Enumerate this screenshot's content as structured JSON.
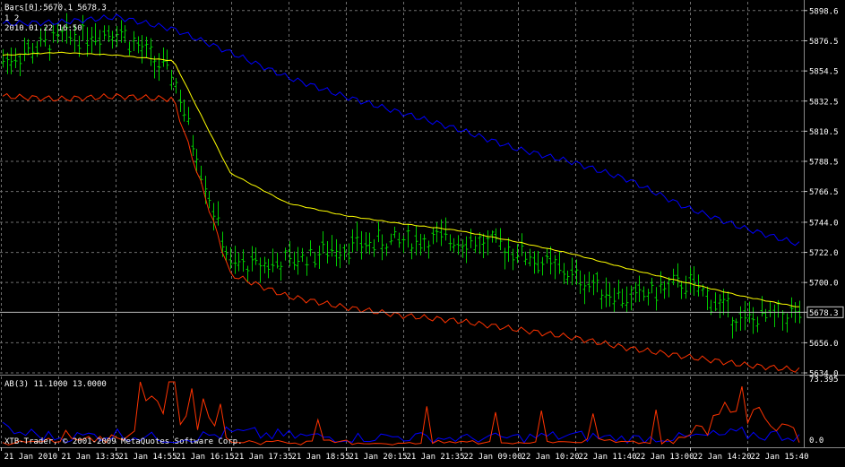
{
  "main_panel": {
    "header_line1": "Bars[0]:5670.1 5678.3",
    "header_line2": "1 2",
    "header_line3": "2010.01.22 16:50",
    "price_ticks": [
      "5898.6",
      "5876.5",
      "5854.5",
      "5832.5",
      "5810.5",
      "5788.5",
      "5766.5",
      "5744.0",
      "5722.0",
      "5700.0",
      "5678.3",
      "5656.0",
      "5634.0"
    ],
    "current_price": "5678.3"
  },
  "indicator_panel": {
    "title": "AB(3) 11.1000 13.0000",
    "ticks": [
      "73.395",
      "0.0"
    ]
  },
  "copyright": "XTB-Trader, © 2001-2009 MetaQuotes Software Corp.",
  "time_labels": [
    "21 Jan 2010",
    "21 Jan 13:35",
    "21 Jan 14:55",
    "21 Jan 16:15",
    "21 Jan 17:35",
    "21 Jan 18:55",
    "21 Jan 20:15",
    "21 Jan 21:35",
    "22 Jan 09:00",
    "22 Jan 10:20",
    "22 Jan 11:40",
    "22 Jan 13:00",
    "22 Jan 14:20",
    "22 Jan 15:40"
  ],
  "colors": {
    "background": "#000000",
    "grid": "#6f6f6f",
    "bars": "#00cc00",
    "ma_mid": "#ffff00",
    "band_upper": "#0000ff",
    "band_lower": "#ff3300",
    "axis_text": "#ffffff"
  },
  "chart_data": {
    "type": "line",
    "instrument_timeframe": "bars (OHLC)",
    "y_range": [
      5634.0,
      5905.0
    ],
    "x": [
      "21 Jan 2010",
      "21 Jan 13:35",
      "21 Jan 14:55",
      "21 Jan 16:15",
      "21 Jan 17:35",
      "21 Jan 18:55",
      "21 Jan 20:15",
      "21 Jan 21:35",
      "22 Jan 09:00",
      "22 Jan 10:20",
      "22 Jan 11:40",
      "22 Jan 13:00",
      "22 Jan 14:20",
      "22 Jan 15:40",
      "22 Jan 16:50"
    ],
    "series": [
      {
        "values": [
          5862,
          5878,
          5885,
          5850,
          5712,
          5715,
          5727,
          5730,
          5732,
          5724,
          5705,
          5688,
          5700,
          5672,
          5678
        ]
      },
      {
        "values": [
          5866,
          5868,
          5866,
          5862,
          5780,
          5758,
          5749,
          5743,
          5738,
          5730,
          5721,
          5710,
          5700,
          5690,
          5682
        ]
      },
      {
        "values": [
          5889,
          5890,
          5894,
          5885,
          5868,
          5850,
          5836,
          5824,
          5812,
          5798,
          5788,
          5775,
          5755,
          5740,
          5728
        ]
      },
      {
        "values": [
          5836,
          5834,
          5836,
          5834,
          5706,
          5690,
          5682,
          5676,
          5672,
          5666,
          5660,
          5652,
          5646,
          5640,
          5636
        ]
      }
    ],
    "indicator": {
      "name": "AB(3)",
      "params": [
        "11.1000",
        "13.0000"
      ],
      "y_range": [
        0.0,
        73.395
      ],
      "series": [
        {
          "values": [
            3,
            12,
            8,
            70,
            6,
            4,
            5,
            3,
            5,
            4,
            6,
            5,
            8,
            50,
            10
          ]
        },
        {
          "values": [
            18,
            10,
            14,
            8,
            15,
            12,
            10,
            11,
            9,
            10,
            12,
            9,
            10,
            14,
            12
          ]
        }
      ]
    }
  }
}
